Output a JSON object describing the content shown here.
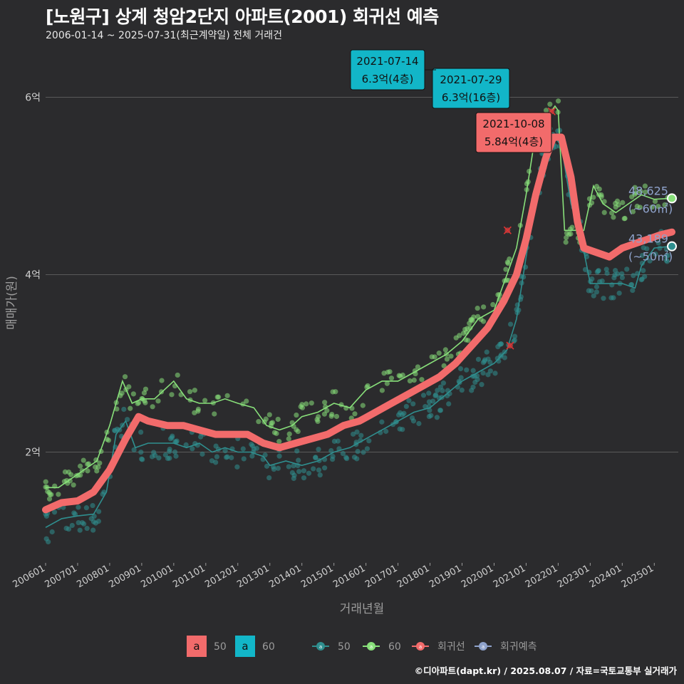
{
  "header": {
    "title": "[노원구] 상계 청암2단지 아파트(2001) 회귀선 예측",
    "subtitle": "2006-01-14 ~ 2025-07-31(최근계약일) 전체 거래건"
  },
  "footer": {
    "credit": "©디아파트(dapt.kr) / 2025.08.07 / 자료=국토교통부 실거래가"
  },
  "colors": {
    "background": "#2b2b2d",
    "grid": "#5a5a5a",
    "s50": "#2f8f8f",
    "s60": "#88e07a",
    "regression": "#f26b6b",
    "forecast": "#8fa3cc",
    "label_cyan": "#12b6c8",
    "label_red": "#f26b6b"
  },
  "chart_data": {
    "type": "line",
    "xlabel": "거래년월",
    "ylabel": "매매가(원)",
    "x_ticks": [
      "200601",
      "200701",
      "200801",
      "200901",
      "201001",
      "201101",
      "201201",
      "201301",
      "201401",
      "201501",
      "201601",
      "201701",
      "201801",
      "201901",
      "202001",
      "202101",
      "202201",
      "202301",
      "202401",
      "202501"
    ],
    "y_ticks": [
      {
        "value": 2,
        "label": "2억"
      },
      {
        "value": 4,
        "label": "4억"
      },
      {
        "value": 6,
        "label": "6억"
      }
    ],
    "ylim": [
      0.8,
      6.6
    ],
    "xlim": [
      2006.0,
      2025.75
    ],
    "grid": true,
    "series": [
      {
        "name": "50",
        "points": [
          [
            2006.0,
            1.15
          ],
          [
            2006.5,
            1.25
          ],
          [
            2007.0,
            1.28
          ],
          [
            2007.5,
            1.3
          ],
          [
            2007.9,
            1.55
          ],
          [
            2008.2,
            2.2
          ],
          [
            2008.5,
            2.35
          ],
          [
            2008.8,
            2.05
          ],
          [
            2009.2,
            2.1
          ],
          [
            2009.6,
            2.1
          ],
          [
            2010.0,
            2.1
          ],
          [
            2010.4,
            2.05
          ],
          [
            2010.8,
            2.1
          ],
          [
            2011.2,
            2.0
          ],
          [
            2011.6,
            2.05
          ],
          [
            2012.0,
            2.0
          ],
          [
            2012.4,
            2.0
          ],
          [
            2012.8,
            1.95
          ],
          [
            2013.0,
            1.85
          ],
          [
            2013.5,
            1.9
          ],
          [
            2014.0,
            1.85
          ],
          [
            2014.5,
            1.9
          ],
          [
            2015.0,
            2.0
          ],
          [
            2015.5,
            2.05
          ],
          [
            2016.0,
            2.15
          ],
          [
            2016.5,
            2.25
          ],
          [
            2017.0,
            2.35
          ],
          [
            2017.5,
            2.45
          ],
          [
            2018.0,
            2.5
          ],
          [
            2018.5,
            2.65
          ],
          [
            2019.0,
            2.8
          ],
          [
            2019.5,
            2.9
          ],
          [
            2020.0,
            3.0
          ],
          [
            2020.4,
            3.15
          ],
          [
            2020.7,
            3.5
          ],
          [
            2021.0,
            4.2
          ],
          [
            2021.3,
            4.9
          ],
          [
            2021.6,
            5.4
          ],
          [
            2021.9,
            5.55
          ],
          [
            2022.1,
            5.45
          ],
          [
            2022.4,
            4.8
          ],
          [
            2022.7,
            4.45
          ],
          [
            2023.0,
            3.9
          ],
          [
            2023.5,
            3.9
          ],
          [
            2024.0,
            3.9
          ],
          [
            2024.4,
            3.85
          ],
          [
            2024.6,
            4.1
          ],
          [
            2025.0,
            4.3
          ],
          [
            2025.5,
            4.32
          ]
        ]
      },
      {
        "name": "60",
        "points": [
          [
            2006.0,
            1.6
          ],
          [
            2006.4,
            1.6
          ],
          [
            2006.8,
            1.7
          ],
          [
            2007.2,
            1.8
          ],
          [
            2007.6,
            1.9
          ],
          [
            2008.0,
            2.3
          ],
          [
            2008.4,
            2.8
          ],
          [
            2008.7,
            2.55
          ],
          [
            2009.0,
            2.6
          ],
          [
            2009.4,
            2.6
          ],
          [
            2009.7,
            2.7
          ],
          [
            2010.0,
            2.8
          ],
          [
            2010.4,
            2.6
          ],
          [
            2010.8,
            2.55
          ],
          [
            2011.2,
            2.55
          ],
          [
            2011.6,
            2.6
          ],
          [
            2012.0,
            2.55
          ],
          [
            2012.5,
            2.5
          ],
          [
            2012.9,
            2.3
          ],
          [
            2013.3,
            2.25
          ],
          [
            2013.7,
            2.3
          ],
          [
            2014.0,
            2.4
          ],
          [
            2014.5,
            2.45
          ],
          [
            2015.0,
            2.55
          ],
          [
            2015.5,
            2.5
          ],
          [
            2016.0,
            2.7
          ],
          [
            2016.5,
            2.8
          ],
          [
            2017.0,
            2.8
          ],
          [
            2017.5,
            2.9
          ],
          [
            2018.0,
            3.0
          ],
          [
            2018.5,
            3.1
          ],
          [
            2019.0,
            3.25
          ],
          [
            2019.5,
            3.5
          ],
          [
            2020.0,
            3.6
          ],
          [
            2020.4,
            4.0
          ],
          [
            2020.7,
            4.3
          ],
          [
            2021.0,
            4.9
          ],
          [
            2021.3,
            5.6
          ],
          [
            2021.6,
            5.75
          ],
          [
            2021.9,
            5.9
          ],
          [
            2022.0,
            5.85
          ],
          [
            2022.2,
            4.5
          ],
          [
            2022.5,
            4.5
          ],
          [
            2022.8,
            4.5
          ],
          [
            2023.1,
            5.0
          ],
          [
            2023.4,
            4.8
          ],
          [
            2023.8,
            4.7
          ],
          [
            2024.2,
            4.8
          ],
          [
            2024.6,
            4.9
          ],
          [
            2025.0,
            4.85
          ],
          [
            2025.5,
            4.86
          ]
        ]
      },
      {
        "name": "회귀선",
        "points": [
          [
            2006.0,
            1.35
          ],
          [
            2006.5,
            1.43
          ],
          [
            2007.0,
            1.45
          ],
          [
            2007.5,
            1.55
          ],
          [
            2008.0,
            1.8
          ],
          [
            2008.5,
            2.15
          ],
          [
            2008.9,
            2.4
          ],
          [
            2009.2,
            2.35
          ],
          [
            2009.8,
            2.3
          ],
          [
            2010.3,
            2.3
          ],
          [
            2010.8,
            2.25
          ],
          [
            2011.3,
            2.2
          ],
          [
            2011.8,
            2.2
          ],
          [
            2012.3,
            2.2
          ],
          [
            2012.8,
            2.1
          ],
          [
            2013.3,
            2.05
          ],
          [
            2013.8,
            2.1
          ],
          [
            2014.3,
            2.15
          ],
          [
            2014.8,
            2.2
          ],
          [
            2015.3,
            2.3
          ],
          [
            2015.8,
            2.35
          ],
          [
            2016.3,
            2.45
          ],
          [
            2016.8,
            2.55
          ],
          [
            2017.3,
            2.65
          ],
          [
            2017.8,
            2.75
          ],
          [
            2018.3,
            2.85
          ],
          [
            2018.8,
            3.0
          ],
          [
            2019.3,
            3.2
          ],
          [
            2019.8,
            3.4
          ],
          [
            2020.3,
            3.7
          ],
          [
            2020.7,
            4.0
          ],
          [
            2021.0,
            4.4
          ],
          [
            2021.3,
            4.9
          ],
          [
            2021.6,
            5.3
          ],
          [
            2021.85,
            5.55
          ],
          [
            2022.1,
            5.55
          ],
          [
            2022.4,
            5.1
          ],
          [
            2022.6,
            4.6
          ],
          [
            2022.8,
            4.3
          ],
          [
            2023.2,
            4.25
          ],
          [
            2023.6,
            4.2
          ],
          [
            2024.0,
            4.3
          ],
          [
            2024.4,
            4.35
          ],
          [
            2024.8,
            4.4
          ],
          [
            2025.2,
            4.45
          ],
          [
            2025.55,
            4.48
          ]
        ]
      }
    ],
    "end_labels": [
      {
        "series": "60",
        "x": 2025.55,
        "y": 4.86,
        "value": "48,625",
        "area": "(~60㎡)"
      },
      {
        "series": "50",
        "x": 2025.55,
        "y": 4.32,
        "value": "43,189",
        "area": "(~50㎡)"
      }
    ],
    "annotations": [
      {
        "date": "2021-07-14",
        "price": "6.3억(4층)",
        "style": "cyan",
        "x": 2021.53,
        "y": 6.3
      },
      {
        "date": "2021-07-29",
        "price": "6.3억(16층)",
        "style": "cyan",
        "x": 2021.57,
        "y": 6.3
      },
      {
        "date": "2021-10-08",
        "price": "5.84억(4층)",
        "style": "red",
        "x": 2021.77,
        "y": 5.84
      }
    ],
    "cancel_marks": [
      {
        "x": 2020.42,
        "y": 4.5
      },
      {
        "x": 2020.5,
        "y": 3.2
      },
      {
        "x": 2021.8,
        "y": 5.84
      }
    ],
    "legend": {
      "placement": "bottom",
      "fill_items": [
        {
          "key": "a",
          "label": "50",
          "color": "#f26b6b"
        },
        {
          "key": "a",
          "label": "60",
          "color": "#12b6c8"
        }
      ],
      "line_items": [
        {
          "label": "50",
          "color": "#2f8f8f"
        },
        {
          "label": "60",
          "color": "#88e07a"
        },
        {
          "label": "회귀선",
          "color": "#f26b6b"
        },
        {
          "label": "회귀예측",
          "color": "#8fa3cc"
        }
      ]
    }
  }
}
